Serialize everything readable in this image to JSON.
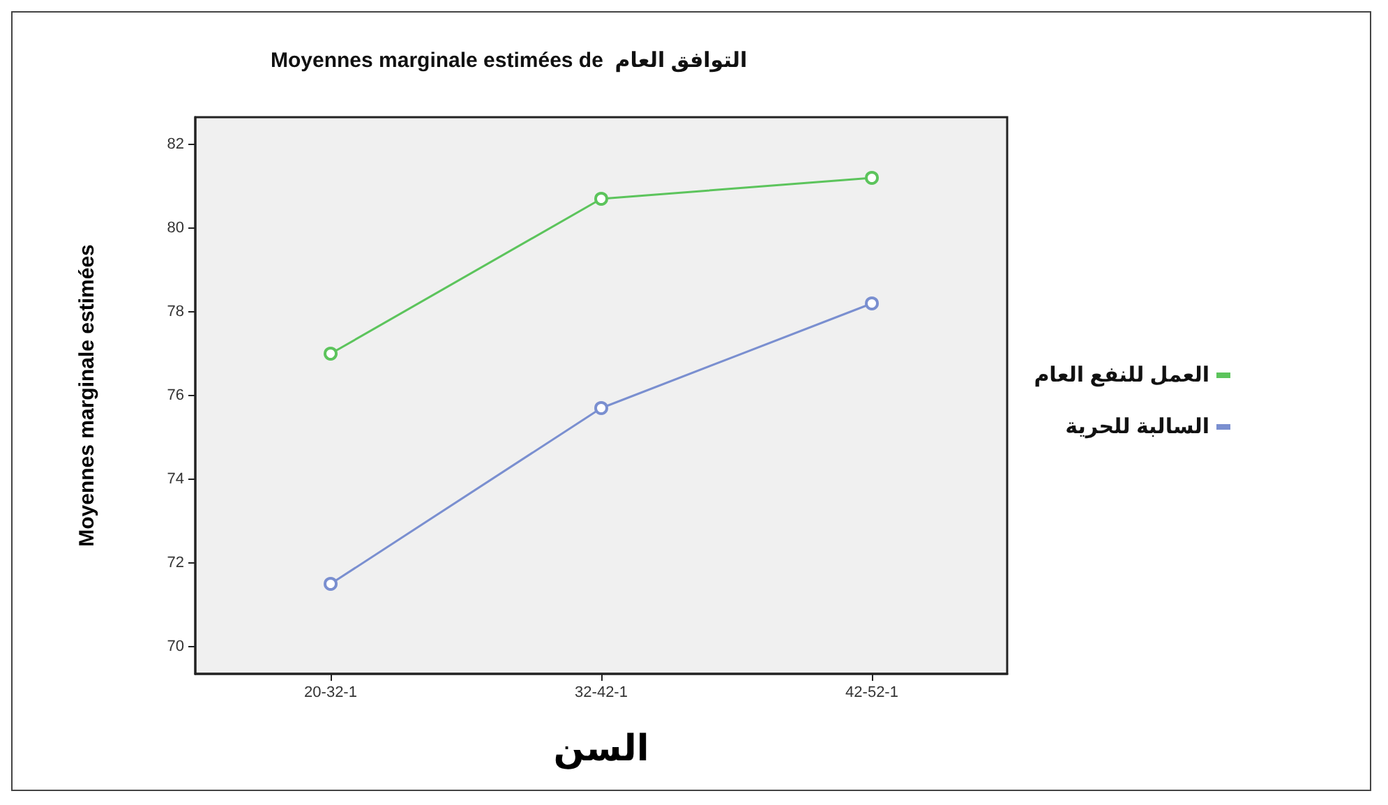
{
  "chart_data": {
    "type": "line",
    "title": "Moyennes marginale estimées de  التوافق العام",
    "xlabel": "السن",
    "ylabel": "Moyennes marginale estimées",
    "categories": [
      "20-32-1",
      "32-42-1",
      "42-52-1"
    ],
    "series": [
      {
        "name": "العمل للنفع العام",
        "color": "#5cc45c",
        "values": [
          77.0,
          80.7,
          81.2
        ]
      },
      {
        "name": "السالبة للحرية",
        "color": "#7a8fd0",
        "values": [
          71.5,
          75.7,
          78.2
        ]
      }
    ],
    "ylim": [
      69.35,
      82.65
    ],
    "yticks": [
      70,
      72,
      74,
      76,
      78,
      80,
      82
    ],
    "grid": false,
    "legend": "right",
    "marker": "circle",
    "line_style": "solid"
  }
}
